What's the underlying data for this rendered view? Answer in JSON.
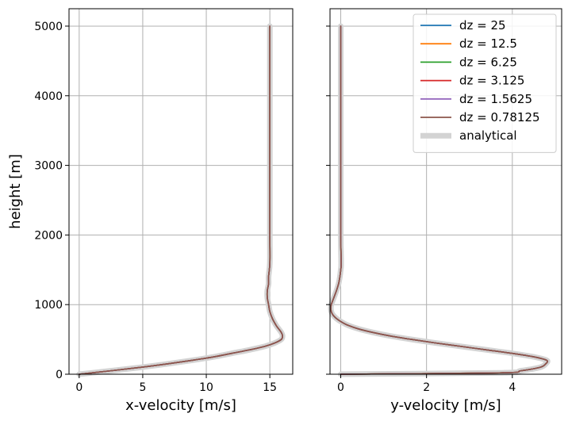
{
  "chart_data": [
    {
      "type": "line",
      "xlabel": "x-velocity [m/s]",
      "ylabel": "height [m]",
      "xlim": [
        -0.8,
        16.8
      ],
      "ylim": [
        0,
        5250
      ],
      "xticks": [
        0,
        5,
        10,
        15
      ],
      "xtick_labels": [
        "0",
        "5",
        "10",
        "15"
      ],
      "yticks": [
        0,
        1000,
        2000,
        3000,
        4000,
        5000
      ],
      "ytick_labels": [
        "0",
        "1000",
        "2000",
        "3000",
        "4000",
        "5000"
      ],
      "grid": true,
      "profile": {
        "height": [
          0,
          50,
          100,
          150,
          200,
          250,
          300,
          350,
          400,
          450,
          500,
          550,
          600,
          650,
          700,
          800,
          900,
          1000,
          1100,
          1200,
          1300,
          1400,
          1600,
          2000,
          3000,
          4000,
          5000
        ],
        "velocity": [
          0,
          2.5,
          4.9,
          7.0,
          8.9,
          10.6,
          12.0,
          13.4,
          14.6,
          15.4,
          15.9,
          16.0,
          15.9,
          15.7,
          15.5,
          15.2,
          15.0,
          14.9,
          14.8,
          14.8,
          14.9,
          14.9,
          15.0,
          15.0,
          15.0,
          15.0,
          15.0
        ]
      },
      "series": [
        {
          "name": "dz = 25",
          "color": "#1f77b4"
        },
        {
          "name": "dz = 12.5",
          "color": "#ff7f0e"
        },
        {
          "name": "dz = 6.25",
          "color": "#2ca02c"
        },
        {
          "name": "dz = 3.125",
          "color": "#d62728"
        },
        {
          "name": "dz = 1.5625",
          "color": "#9467bd"
        },
        {
          "name": "dz = 0.78125",
          "color": "#8c564b"
        },
        {
          "name": "analytical",
          "color": "#d3d3d3",
          "style": "thick"
        }
      ]
    },
    {
      "type": "line",
      "xlabel": "y-velocity [m/s]",
      "ylabel": "",
      "xlim": [
        -0.25,
        5.15
      ],
      "ylim": [
        0,
        5250
      ],
      "xticks": [
        0,
        2,
        4
      ],
      "xtick_labels": [
        "0",
        "2",
        "4"
      ],
      "yticks": [
        0,
        1000,
        2000,
        3000,
        4000,
        5000
      ],
      "ytick_labels": [],
      "grid": true,
      "legend_position": "top-right",
      "profile": {
        "height": [
          0,
          20,
          50,
          100,
          150,
          200,
          250,
          300,
          350,
          400,
          450,
          500,
          550,
          600,
          650,
          700,
          750,
          800,
          850,
          900,
          950,
          1000,
          1100,
          1200,
          1300,
          1400,
          1500,
          1600,
          2000,
          3000,
          4000,
          5000
        ],
        "velocity": [
          0,
          3.7,
          4.2,
          4.65,
          4.78,
          4.8,
          4.5,
          4.0,
          3.4,
          2.8,
          2.2,
          1.65,
          1.15,
          0.75,
          0.42,
          0.18,
          0.02,
          -0.1,
          -0.18,
          -0.22,
          -0.23,
          -0.22,
          -0.16,
          -0.1,
          -0.05,
          -0.02,
          0.0,
          0.01,
          0.0,
          0.0,
          0.0,
          0.0
        ]
      },
      "series": [
        {
          "name": "dz = 25",
          "color": "#1f77b4"
        },
        {
          "name": "dz = 12.5",
          "color": "#ff7f0e"
        },
        {
          "name": "dz = 6.25",
          "color": "#2ca02c"
        },
        {
          "name": "dz = 3.125",
          "color": "#d62728"
        },
        {
          "name": "dz = 1.5625",
          "color": "#9467bd"
        },
        {
          "name": "dz = 0.78125",
          "color": "#8c564b"
        },
        {
          "name": "analytical",
          "color": "#d3d3d3",
          "style": "thick"
        }
      ]
    }
  ]
}
